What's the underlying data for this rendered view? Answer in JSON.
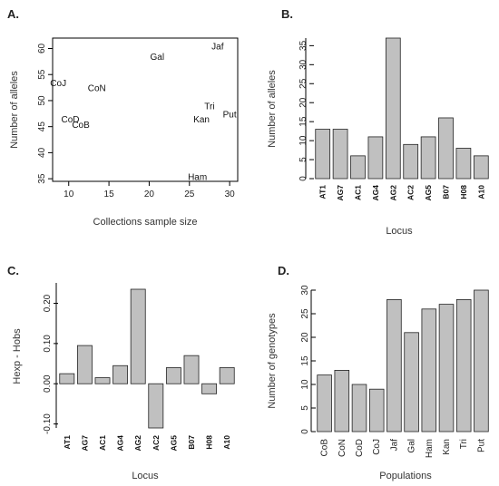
{
  "chart_data": [
    {
      "panel": "A.",
      "type": "scatter",
      "xlabel": "Collections sample size",
      "ylabel": "Number of alleles",
      "xlim": [
        8,
        31
      ],
      "ylim": [
        34.5,
        62
      ],
      "xticks": [
        10,
        15,
        20,
        25,
        30
      ],
      "yticks": [
        35,
        40,
        45,
        50,
        55,
        60
      ],
      "points": [
        {
          "label": "CoJ",
          "x": 8.7,
          "y": 53.5
        },
        {
          "label": "CoN",
          "x": 13.5,
          "y": 52.5
        },
        {
          "label": "CoD",
          "x": 10.2,
          "y": 46.5
        },
        {
          "label": "CoB",
          "x": 11.5,
          "y": 45.5
        },
        {
          "label": "Gal",
          "x": 21,
          "y": 58.5
        },
        {
          "label": "Jaf",
          "x": 28.5,
          "y": 60.5
        },
        {
          "label": "Tri",
          "x": 27.5,
          "y": 49
        },
        {
          "label": "Kan",
          "x": 26.5,
          "y": 46.5
        },
        {
          "label": "Put",
          "x": 30,
          "y": 47.5
        },
        {
          "label": "Ham",
          "x": 26,
          "y": 35.5
        }
      ]
    },
    {
      "panel": "B.",
      "type": "bar",
      "xlabel": "Locus",
      "ylabel": "Number of alleles",
      "categories": [
        "AT1",
        "AG7",
        "AC1",
        "AG4",
        "AG2",
        "AC2",
        "AG5",
        "B07",
        "H08",
        "A10"
      ],
      "values": [
        13,
        13,
        6,
        11,
        37,
        9,
        11,
        16,
        8,
        6
      ],
      "ylim": [
        0,
        37
      ],
      "yticks": [
        0,
        5,
        10,
        15,
        20,
        25,
        30,
        35
      ]
    },
    {
      "panel": "C.",
      "type": "bar",
      "xlabel": "Locus",
      "ylabel": "Hexp - Hobs",
      "categories": [
        "AT1",
        "AG7",
        "AC1",
        "AG4",
        "AG2",
        "AC2",
        "AG5",
        "B07",
        "H08",
        "A10"
      ],
      "values": [
        0.025,
        0.095,
        0.015,
        0.045,
        0.235,
        -0.11,
        0.04,
        0.07,
        -0.025,
        0.04
      ],
      "ylim": [
        -0.11,
        0.235
      ],
      "yticks": [
        -0.1,
        0.0,
        0.1,
        0.2
      ],
      "ytick_labels": [
        "-0.10",
        "0.00",
        "0.10",
        "0.20"
      ]
    },
    {
      "panel": "D.",
      "type": "bar",
      "xlabel": "Populations",
      "ylabel": "Number of genotypes",
      "categories": [
        "CoB",
        "CoN",
        "CoD",
        "CoJ",
        "Jaf",
        "Gal",
        "Ham",
        "Kan",
        "Tri",
        "Put"
      ],
      "values": [
        12,
        13,
        10,
        9,
        28,
        21,
        26,
        27,
        28,
        30
      ],
      "ylim": [
        0,
        30
      ],
      "yticks": [
        0,
        5,
        10,
        15,
        20,
        25,
        30
      ]
    }
  ]
}
